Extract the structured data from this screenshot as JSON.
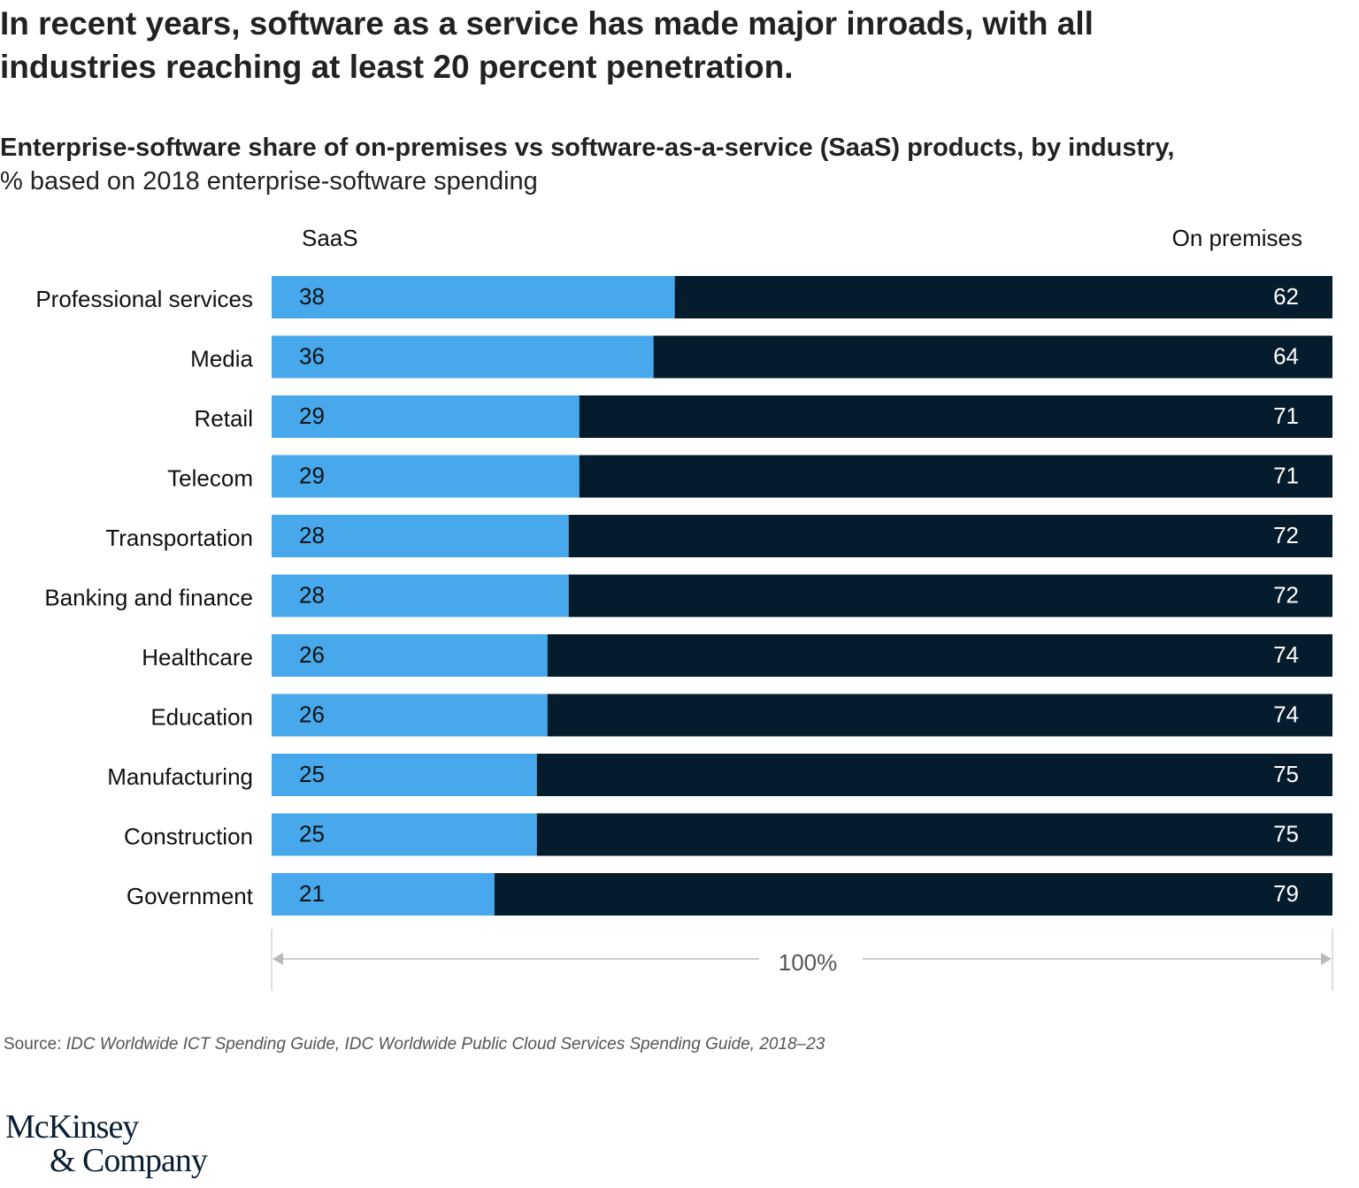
{
  "headline": "In recent years, software as a service has made major inroads, with all industries reaching at least 20 percent penetration.",
  "subtitle_bold": "Enterprise-software share of on-premises vs software-as-a-service (SaaS) products, by industry,",
  "subtitle_regular": "% based on 2018 enterprise-software spending",
  "source_label": "Source:",
  "source_text": "IDC Worldwide ICT Spending Guide, IDC Worldwide Public Cloud Services Spending Guide, 2018–23",
  "logo_line1": "McKinsey",
  "logo_line2": "& Company",
  "chart_data": {
    "type": "bar",
    "orientation": "horizontal",
    "stacked": true,
    "categories": [
      "Professional services",
      "Media",
      "Retail",
      "Telecom",
      "Transportation",
      "Banking and finance",
      "Healthcare",
      "Education",
      "Manufacturing",
      "Construction",
      "Government"
    ],
    "series": [
      {
        "name": "SaaS",
        "color": "#47a8ec",
        "values": [
          38,
          36,
          29,
          29,
          28,
          28,
          26,
          26,
          25,
          25,
          21
        ]
      },
      {
        "name": "On premises",
        "color": "#051c2c",
        "values": [
          62,
          64,
          71,
          71,
          72,
          72,
          74,
          74,
          75,
          75,
          79
        ]
      }
    ],
    "xlim": [
      0,
      100
    ],
    "axis_label": "100%",
    "grid": false,
    "legend": "top"
  }
}
